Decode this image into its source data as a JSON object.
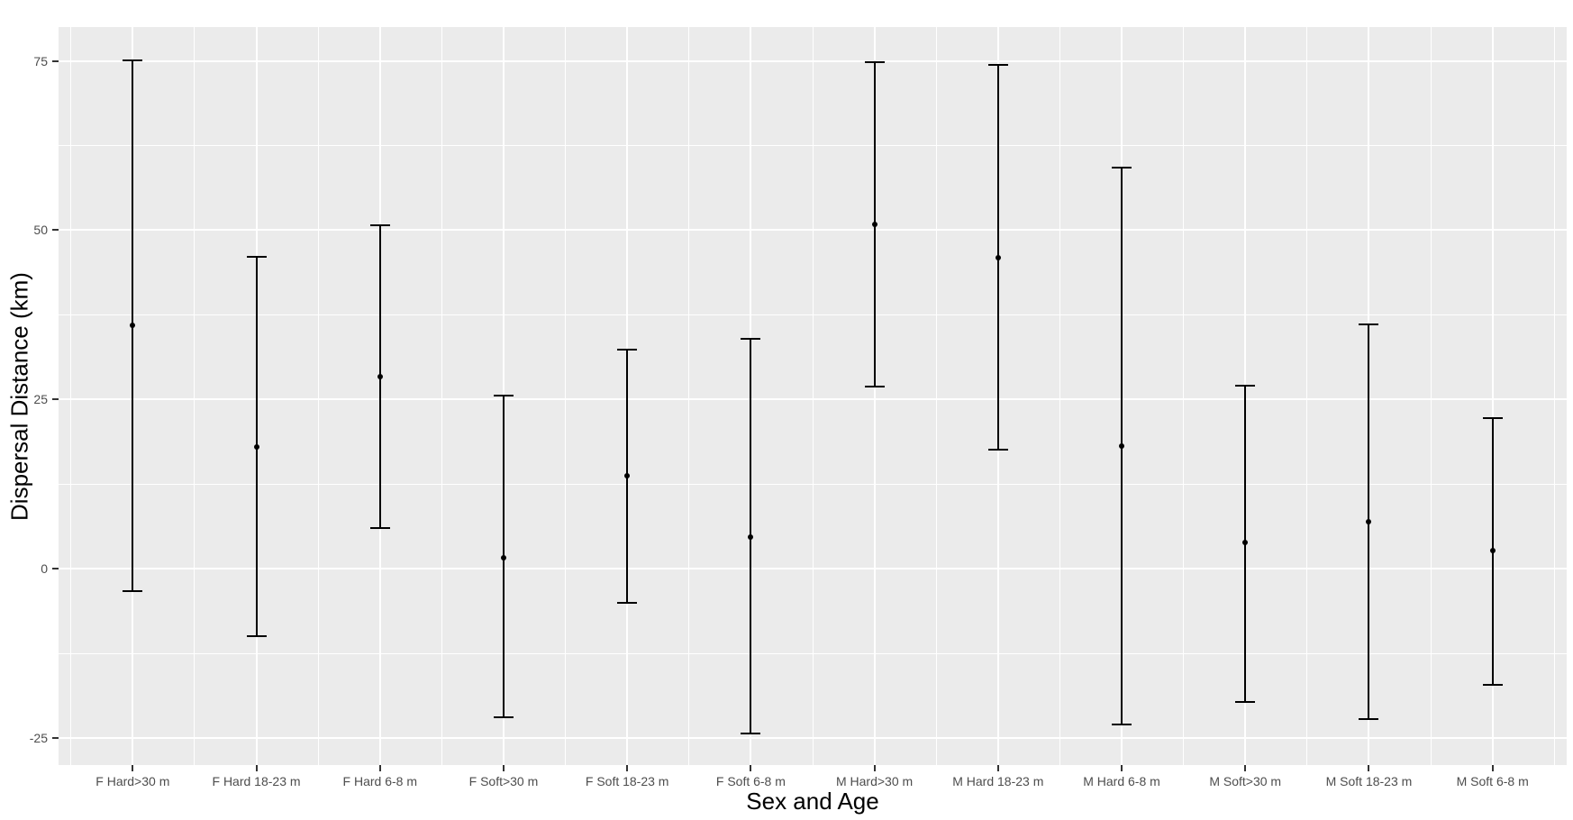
{
  "chart_data": {
    "type": "scatter",
    "subtype": "pointrange-errorbar",
    "title": "",
    "xlabel": "Sex and Age",
    "ylabel": "Dispersal Distance (km)",
    "categories": [
      "F Hard>30 m",
      "F Hard 18-23 m",
      "F Hard 6-8 m",
      "F Soft>30 m",
      "F Soft 18-23 m",
      "F Soft 6-8 m",
      "M Hard>30 m",
      "M Hard 18-23 m",
      "M Hard 6-8 m",
      "M Soft>30 m",
      "M Soft 18-23 m",
      "M Soft 6-8 m"
    ],
    "series": [
      {
        "name": "estimate",
        "values": [
          35.9,
          18.0,
          28.3,
          1.6,
          13.7,
          4.7,
          50.8,
          45.9,
          18.1,
          3.9,
          7.0,
          2.7
        ]
      },
      {
        "name": "ci_lower",
        "values": [
          -3.3,
          -10.0,
          6.0,
          -22.0,
          -5.1,
          -24.4,
          26.9,
          17.6,
          -23.0,
          -19.7,
          -22.2,
          -17.1
        ]
      },
      {
        "name": "ci_upper",
        "values": [
          75.1,
          46.0,
          50.7,
          25.6,
          32.4,
          34.0,
          74.8,
          74.4,
          59.2,
          27.0,
          36.1,
          22.3
        ]
      }
    ],
    "ylim": [
      -29,
      80
    ],
    "yticks": [
      -25,
      0,
      25,
      50,
      75
    ],
    "ytick_labels": [
      "-25",
      "0",
      "25",
      "50",
      "75"
    ],
    "yticks_minor": [
      -12.5,
      12.5,
      37.5,
      62.5
    ],
    "grid": "major and minor white gridlines on grey panel",
    "legend": "none",
    "style": {
      "panel_background": "#EBEBEB",
      "gridline_color": "#FFFFFF",
      "outer_background": "#FFFFFF",
      "tick_label_color": "#4D4D4D",
      "axis_title_color": "#000000",
      "data_color": "#000000"
    }
  }
}
